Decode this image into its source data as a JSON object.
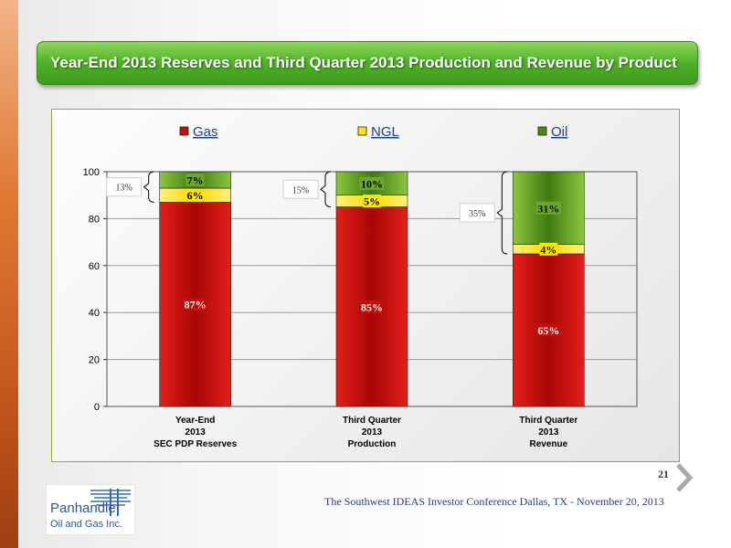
{
  "slide": {
    "title": "Year-End 2013 Reserves and Third Quarter 2013 Production and Revenue by Product",
    "page_number": "21",
    "footer": "The Southwest  IDEAS Investor Conference Dallas, TX - November 20, 2013",
    "logo": {
      "line1": "Panhandle",
      "line2": "Oil and Gas Inc."
    },
    "colors": {
      "gas": "#c0100c",
      "ngl": "#ffe600",
      "oil": "#5a9a16",
      "accent": "#4fb027"
    }
  },
  "chart_data": {
    "type": "bar",
    "stacked": true,
    "categories": [
      [
        "Year-End",
        "2013",
        "SEC PDP Reserves"
      ],
      [
        "Third Quarter",
        "2013",
        "Production"
      ],
      [
        "Third Quarter",
        "2013",
        "Revenue"
      ]
    ],
    "series": [
      {
        "name": "Gas",
        "values": [
          87,
          85,
          65
        ],
        "labels": [
          "87%",
          "85%",
          "65%"
        ]
      },
      {
        "name": "NGL",
        "values": [
          6,
          5,
          4
        ],
        "labels": [
          "6%",
          "5%",
          "4%"
        ]
      },
      {
        "name": "Oil",
        "values": [
          7,
          10,
          31
        ],
        "labels": [
          "7%",
          "10%",
          "31%"
        ]
      }
    ],
    "brackets": [
      "13%",
      "15%",
      "35%"
    ],
    "ylim": [
      0,
      100
    ],
    "yticks": [
      0,
      20,
      40,
      60,
      80,
      100
    ],
    "legend": "top",
    "grid": true
  }
}
